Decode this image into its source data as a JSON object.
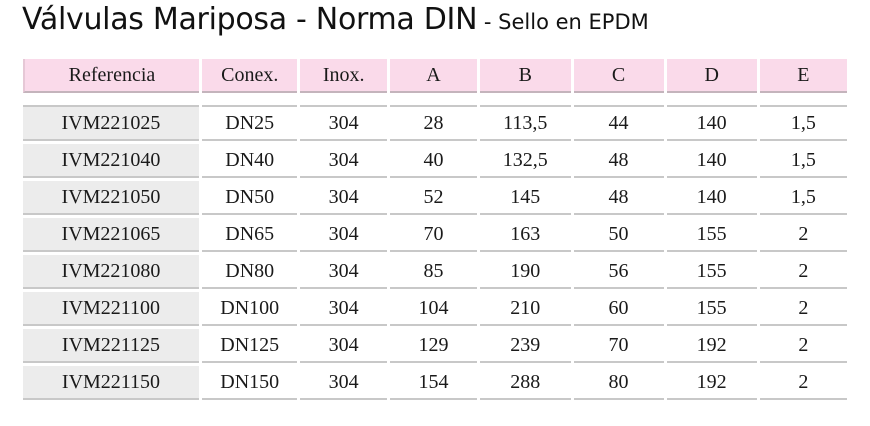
{
  "title": {
    "main": "Válvulas Mariposa - Norma DIN",
    "sub": " - Sello en EPDM"
  },
  "table": {
    "headers": [
      "Referencia",
      "Conex.",
      "Inox.",
      "A",
      "B",
      "C",
      "D",
      "E"
    ],
    "rows": [
      [
        "IVM221025",
        "DN25",
        "304",
        "28",
        "113,5",
        "44",
        "140",
        "1,5"
      ],
      [
        "IVM221040",
        "DN40",
        "304",
        "40",
        "132,5",
        "48",
        "140",
        "1,5"
      ],
      [
        "IVM221050",
        "DN50",
        "304",
        "52",
        "145",
        "48",
        "140",
        "1,5"
      ],
      [
        "IVM221065",
        "DN65",
        "304",
        "70",
        "163",
        "50",
        "155",
        "2"
      ],
      [
        "IVM221080",
        "DN80",
        "304",
        "85",
        "190",
        "56",
        "155",
        "2"
      ],
      [
        "IVM221100",
        "DN100",
        "304",
        "104",
        "210",
        "60",
        "155",
        "2"
      ],
      [
        "IVM221125",
        "DN125",
        "304",
        "129",
        "239",
        "70",
        "192",
        "2"
      ],
      [
        "IVM221150",
        "DN150",
        "304",
        "154",
        "288",
        "80",
        "192",
        "2"
      ]
    ]
  },
  "colors": {
    "header_bg": "#fadaea",
    "reference_bg": "#ececec"
  }
}
